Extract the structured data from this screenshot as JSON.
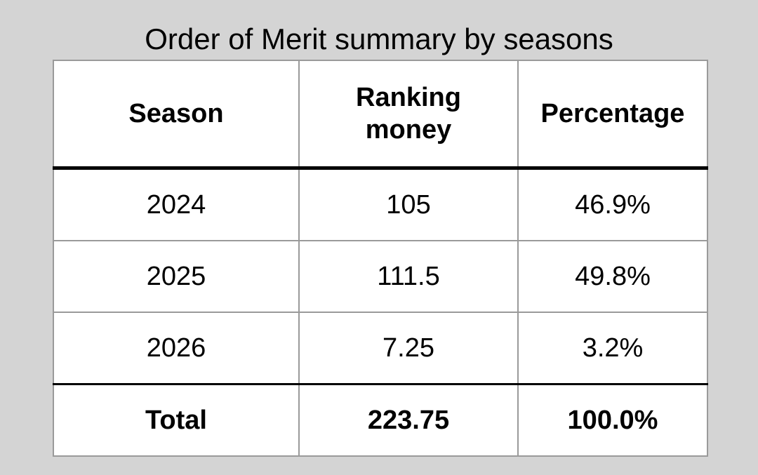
{
  "title": "Order of Merit summary by seasons",
  "table": {
    "headers": [
      "Season",
      "Ranking money",
      "Percentage"
    ],
    "rows": [
      [
        "2024",
        "105",
        "46.9%"
      ],
      [
        "2025",
        "111.5",
        "49.8%"
      ],
      [
        "2026",
        "7.25",
        "3.2%"
      ]
    ],
    "total": [
      "Total",
      "223.75",
      "100.0%"
    ]
  }
}
